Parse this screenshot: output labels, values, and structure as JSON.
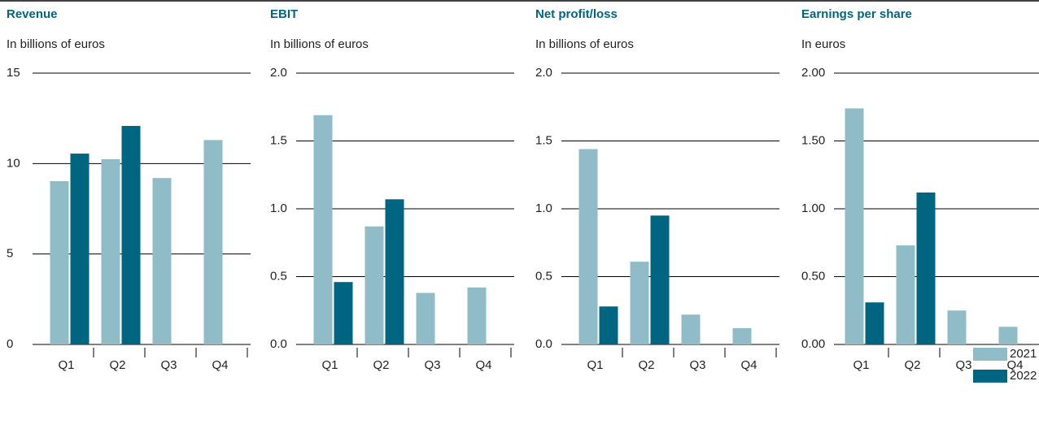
{
  "chart_data": [
    {
      "type": "bar",
      "title": "Revenue",
      "subtitle": "In billions of euros",
      "categories": [
        "Q1",
        "Q2",
        "Q3",
        "Q4"
      ],
      "series": [
        {
          "name": "2021",
          "color": "#8fbcc6",
          "values": [
            9.03,
            10.24,
            9.2,
            11.3
          ]
        },
        {
          "name": "2022",
          "color": "#006580",
          "values": [
            10.55,
            12.08,
            null,
            null
          ]
        }
      ],
      "ylim": [
        0,
        15
      ],
      "yticks": [
        0,
        5,
        10,
        15
      ],
      "grid": true
    },
    {
      "type": "bar",
      "title": "EBIT",
      "subtitle": "In billions of euros",
      "categories": [
        "Q1",
        "Q2",
        "Q3",
        "Q4"
      ],
      "series": [
        {
          "color": "#8fbcc6",
          "values": [
            1.69,
            0.87,
            0.38,
            0.42
          ]
        },
        {
          "color": "#006580",
          "values": [
            0.46,
            1.07,
            null,
            null
          ]
        }
      ],
      "ylim": [
        0,
        2
      ],
      "yticks": [
        {
          "value": 0,
          "label": "0.0"
        },
        0.5,
        {
          "value": 1,
          "label": "1.0"
        },
        1.5,
        {
          "value": 2,
          "label": "2.0"
        }
      ],
      "grid": true
    },
    {
      "type": "bar",
      "title": "Net profit/loss",
      "subtitle": "In billions of euros",
      "categories": [
        "Q1",
        "Q2",
        "Q3",
        "Q4"
      ],
      "series": [
        {
          "color": "#8fbcc6",
          "values": [
            1.44,
            0.61,
            0.22,
            0.12
          ]
        },
        {
          "color": "#006580",
          "values": [
            0.28,
            0.95,
            null,
            null
          ]
        }
      ],
      "ylim": [
        0,
        2
      ],
      "yticks": [
        {
          "value": 0,
          "label": "0.0"
        },
        0.5,
        {
          "value": 1,
          "label": "1.0"
        },
        1.5,
        {
          "value": 2,
          "label": "2.0"
        }
      ],
      "grid": true
    },
    {
      "type": "bar",
      "title": "Earnings per share",
      "subtitle": "In euros",
      "categories": [
        "Q1",
        "Q2",
        "Q3",
        "Q4"
      ],
      "series": [
        {
          "color": "#8fbcc6",
          "values": [
            1.74,
            0.73,
            0.25,
            0.13
          ]
        },
        {
          "color": "#006580",
          "values": [
            0.31,
            1.12,
            null,
            null
          ]
        }
      ],
      "ylim": [
        0,
        2
      ],
      "yticks": [
        {
          "value": 0,
          "label": "0.00"
        },
        {
          "value": 0.5,
          "label": "0.50"
        },
        {
          "value": 1,
          "label": "1.00"
        },
        {
          "value": 1.5,
          "label": "1.50"
        },
        {
          "value": 2,
          "label": "2.00"
        }
      ],
      "grid": true
    }
  ]
}
